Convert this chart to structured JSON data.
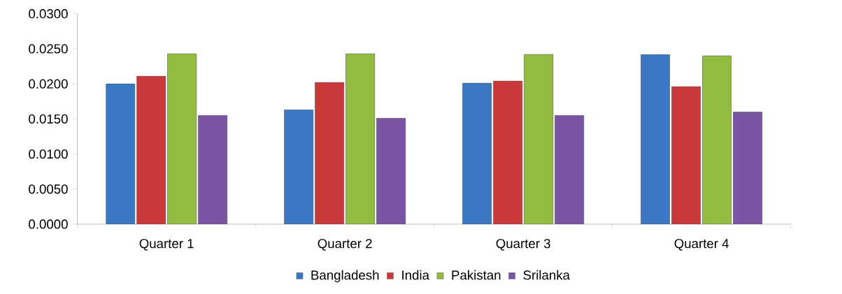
{
  "chart_data": {
    "type": "bar",
    "categories": [
      "Quarter 1",
      "Quarter 2",
      "Quarter 3",
      "Quarter 4"
    ],
    "series": [
      {
        "name": "Bangladesh",
        "color": "#3a78c3",
        "values": [
          0.02,
          0.0163,
          0.0201,
          0.0242
        ]
      },
      {
        "name": "India",
        "color": "#c9393a",
        "values": [
          0.0211,
          0.0202,
          0.0204,
          0.0196
        ]
      },
      {
        "name": "Pakistan",
        "color": "#93bb3f",
        "values": [
          0.0243,
          0.0243,
          0.0242,
          0.024
        ]
      },
      {
        "name": "Srilanka",
        "color": "#7a55a3",
        "values": [
          0.0155,
          0.0151,
          0.0155,
          0.016
        ]
      }
    ],
    "ylim": [
      0,
      0.03
    ],
    "yticks": [
      {
        "value": 0,
        "label": "0.0000"
      },
      {
        "value": 0.005,
        "label": "0.0050"
      },
      {
        "value": 0.01,
        "label": "0.0100"
      },
      {
        "value": 0.015,
        "label": "0.0150"
      },
      {
        "value": 0.02,
        "label": "0.0200"
      },
      {
        "value": 0.025,
        "label": "0.0250"
      },
      {
        "value": 0.03,
        "label": "0.0300"
      }
    ],
    "legend": "bottom"
  }
}
